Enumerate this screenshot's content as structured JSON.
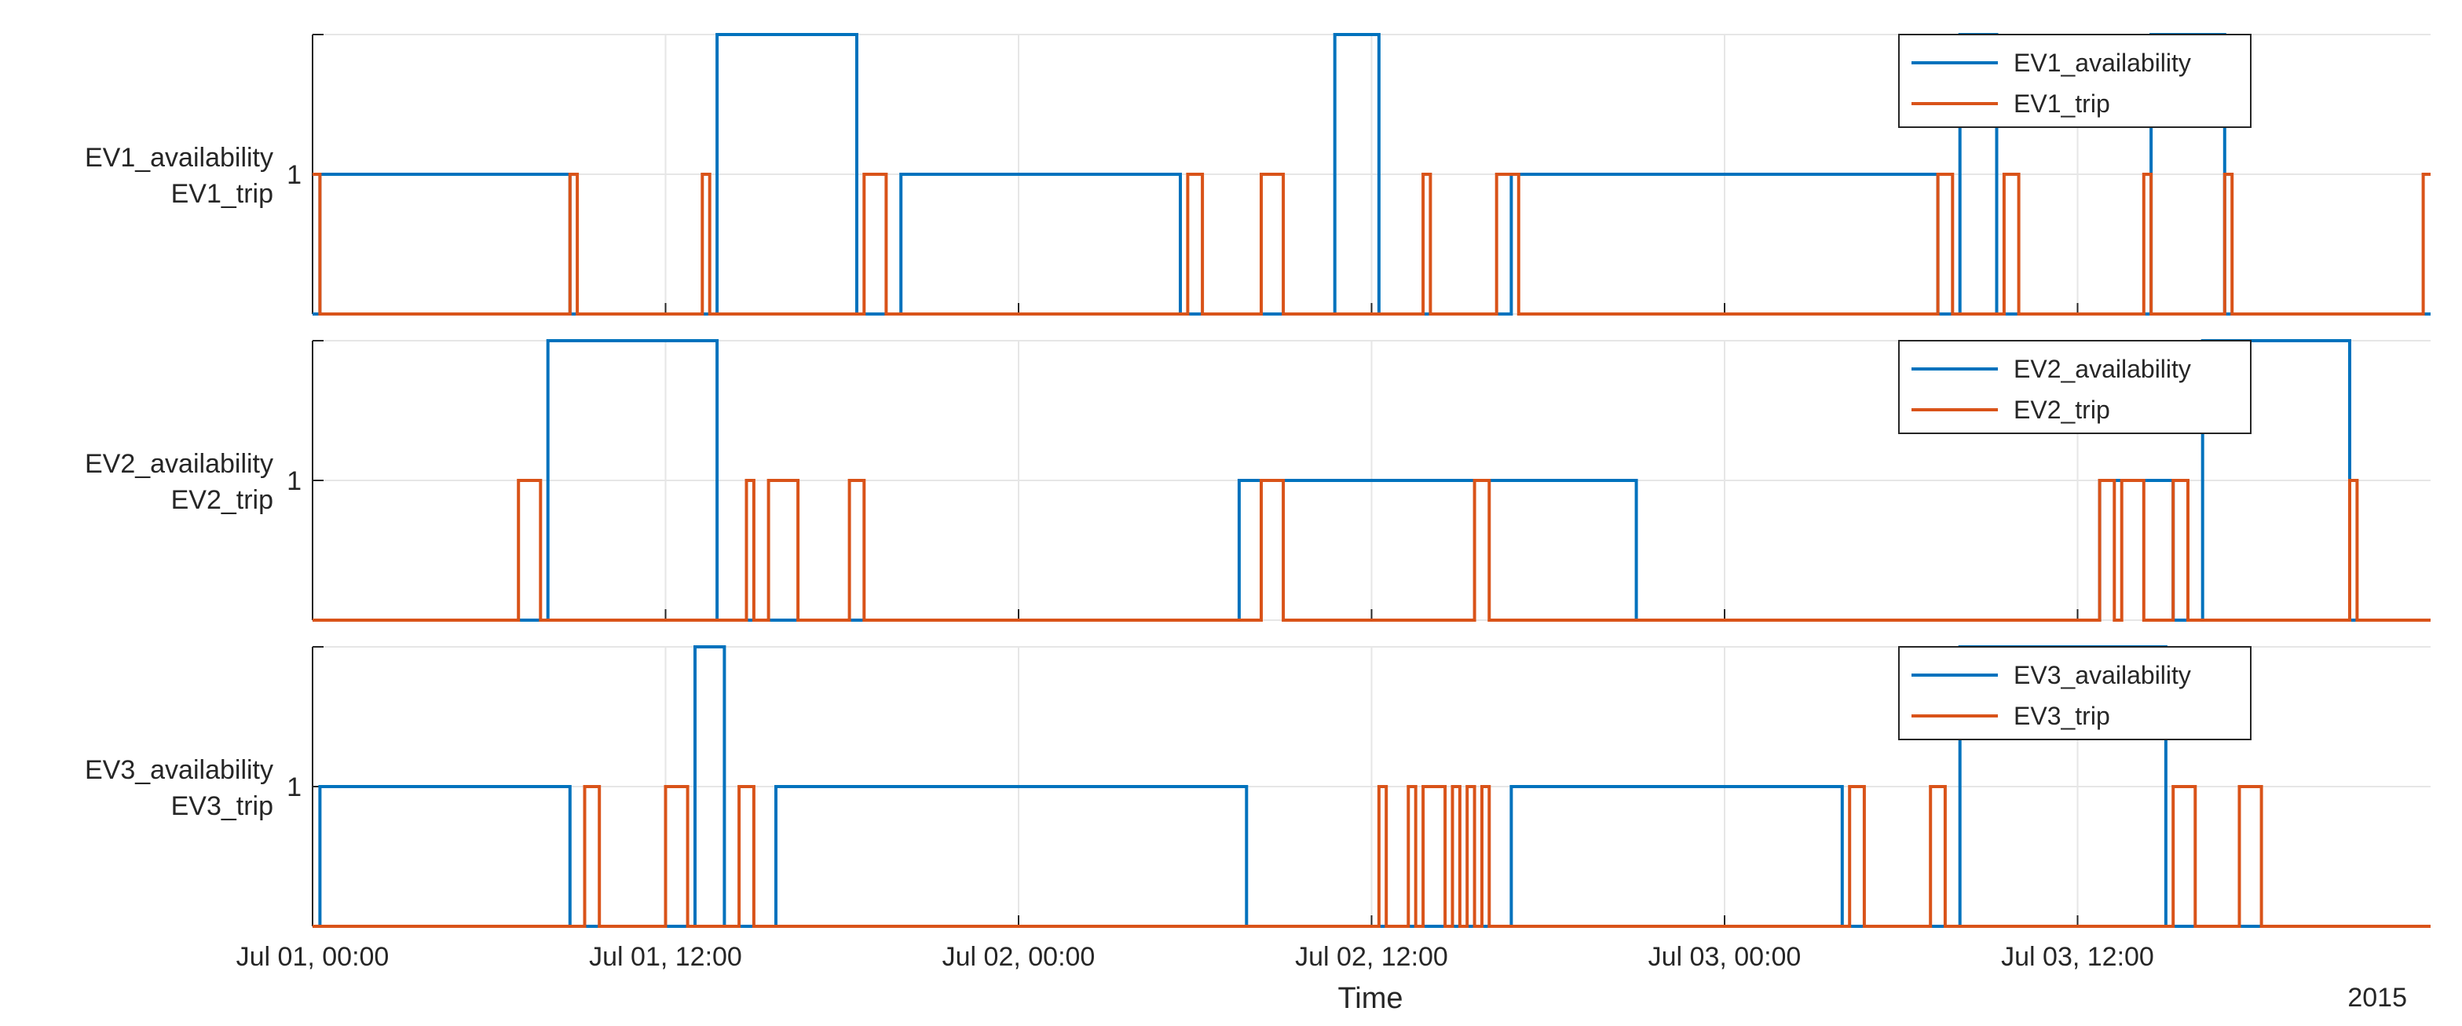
{
  "chart_data": {
    "type": "line",
    "xlabel": "Time",
    "year_label": "2015",
    "x_tick_labels": [
      "Jul 01, 00:00",
      "Jul 01, 12:00",
      "Jul 02, 00:00",
      "Jul 02, 12:00",
      "Jul 03, 00:00",
      "Jul 03, 12:00"
    ],
    "xlim": [
      "Jul 01, 00:00",
      "Jul 04, 00:00"
    ],
    "grid": true,
    "line_style": "stairs",
    "colors": {
      "availability": "#0072BD",
      "trip": "#D95319",
      "grid": "#e6e6e6",
      "axes": "#262626"
    },
    "panels": [
      {
        "ylabel": [
          "EV1_availability",
          "EV1_trip"
        ],
        "ytick_labels": [
          "1"
        ],
        "ylim": [
          0,
          2
        ],
        "legend_location": "top-right",
        "series": [
          {
            "name": "EV1_availability",
            "x": [
              "Jul 01, 00:00",
              "Jul 01, 00:15",
              "Jul 01, 08:45",
              "Jul 01, 13:45",
              "Jul 01, 18:30",
              "Jul 01, 20:00",
              "Jul 02, 05:30",
              "Jul 02, 10:45",
              "Jul 02, 12:15",
              "Jul 02, 14:30",
              "Jul 02, 16:45",
              "Jul 03, 07:15",
              "Jul 03, 08:00",
              "Jul 03, 09:15",
              "Jul 03, 14:30",
              "Jul 03, 17:00"
            ],
            "y": [
              0,
              1,
              0,
              2,
              0,
              1,
              0,
              2,
              0,
              0,
              1,
              0,
              2,
              0,
              2,
              0
            ]
          },
          {
            "name": "EV1_trip",
            "x": [
              "Jul 01, 00:00",
              "Jul 01, 00:15",
              "Jul 01, 08:45",
              "Jul 01, 09:00",
              "Jul 01, 13:15",
              "Jul 01, 13:30",
              "Jul 01, 18:45",
              "Jul 01, 19:30",
              "Jul 02, 05:45",
              "Jul 02, 06:15",
              "Jul 02, 08:15",
              "Jul 02, 09:00",
              "Jul 02, 13:45",
              "Jul 02, 14:00",
              "Jul 02, 16:15",
              "Jul 02, 17:00",
              "Jul 03, 07:15",
              "Jul 03, 07:45",
              "Jul 03, 09:30",
              "Jul 03, 10:00",
              "Jul 03, 14:15",
              "Jul 03, 14:30",
              "Jul 03, 17:00",
              "Jul 03, 17:15",
              "Jul 03, 23:45"
            ],
            "y": [
              1,
              0,
              1,
              0,
              1,
              0,
              1,
              0,
              1,
              0,
              1,
              0,
              1,
              0,
              1,
              0,
              1,
              0,
              1,
              0,
              1,
              0,
              1,
              0,
              1
            ]
          }
        ]
      },
      {
        "ylabel": [
          "EV2_availability",
          "EV2_trip"
        ],
        "ytick_labels": [
          "1"
        ],
        "ylim": [
          0,
          2
        ],
        "legend_location": "top-right",
        "series": [
          {
            "name": "EV2_availability",
            "x": [
              "Jul 01, 00:00",
              "Jul 01, 08:00",
              "Jul 01, 13:45",
              "Jul 01, 18:45",
              "Jul 02, 07:30",
              "Jul 02, 21:00",
              "Jul 03, 12:45",
              "Jul 03, 15:15",
              "Jul 03, 16:15",
              "Jul 03, 21:15"
            ],
            "y": [
              0,
              2,
              0,
              0,
              1,
              0,
              1,
              0,
              2,
              0
            ]
          },
          {
            "name": "EV2_trip",
            "x": [
              "Jul 01, 00:00",
              "Jul 01, 07:00",
              "Jul 01, 07:45",
              "Jul 01, 14:45",
              "Jul 01, 15:00",
              "Jul 01, 15:30",
              "Jul 01, 16:30",
              "Jul 01, 18:15",
              "Jul 01, 18:45",
              "Jul 02, 08:15",
              "Jul 02, 09:00",
              "Jul 02, 15:30",
              "Jul 02, 16:00",
              "Jul 03, 12:45",
              "Jul 03, 13:15",
              "Jul 03, 13:30",
              "Jul 03, 14:15",
              "Jul 03, 15:15",
              "Jul 03, 15:45",
              "Jul 03, 21:15",
              "Jul 03, 21:30"
            ],
            "y": [
              0,
              1,
              0,
              1,
              0,
              1,
              0,
              1,
              0,
              1,
              0,
              1,
              0,
              1,
              0,
              1,
              0,
              1,
              0,
              1,
              0
            ]
          }
        ]
      },
      {
        "ylabel": [
          "EV3_availability",
          "EV3_trip"
        ],
        "ytick_labels": [
          "1"
        ],
        "ylim": [
          0,
          2
        ],
        "legend_location": "top-right",
        "series": [
          {
            "name": "EV3_availability",
            "x": [
              "Jul 01, 00:00",
              "Jul 01, 00:15",
              "Jul 01, 08:45",
              "Jul 01, 13:00",
              "Jul 01, 14:00",
              "Jul 01, 15:45",
              "Jul 02, 07:45",
              "Jul 02, 12:15",
              "Jul 02, 16:45",
              "Jul 03, 04:00",
              "Jul 03, 08:00",
              "Jul 03, 15:00"
            ],
            "y": [
              0,
              1,
              0,
              2,
              0,
              1,
              0,
              0,
              1,
              0,
              2,
              0
            ]
          },
          {
            "name": "EV3_trip",
            "x": [
              "Jul 01, 00:00",
              "Jul 01, 09:15",
              "Jul 01, 09:45",
              "Jul 01, 12:00",
              "Jul 01, 12:45",
              "Jul 01, 14:30",
              "Jul 01, 15:00",
              "Jul 02, 12:15",
              "Jul 02, 12:30",
              "Jul 02, 13:15",
              "Jul 02, 13:30",
              "Jul 02, 13:45",
              "Jul 02, 14:30",
              "Jul 02, 14:45",
              "Jul 02, 15:00",
              "Jul 02, 15:15",
              "Jul 02, 15:30",
              "Jul 02, 15:45",
              "Jul 02, 16:00",
              "Jul 03, 04:15",
              "Jul 03, 04:45",
              "Jul 03, 07:00",
              "Jul 03, 07:30",
              "Jul 03, 15:15",
              "Jul 03, 16:00",
              "Jul 03, 17:30",
              "Jul 03, 18:15"
            ],
            "y": [
              0,
              1,
              0,
              1,
              0,
              1,
              0,
              1,
              0,
              1,
              0,
              1,
              0,
              1,
              0,
              1,
              0,
              1,
              0,
              1,
              0,
              1,
              0,
              1,
              0,
              1,
              0
            ]
          }
        ]
      }
    ]
  }
}
